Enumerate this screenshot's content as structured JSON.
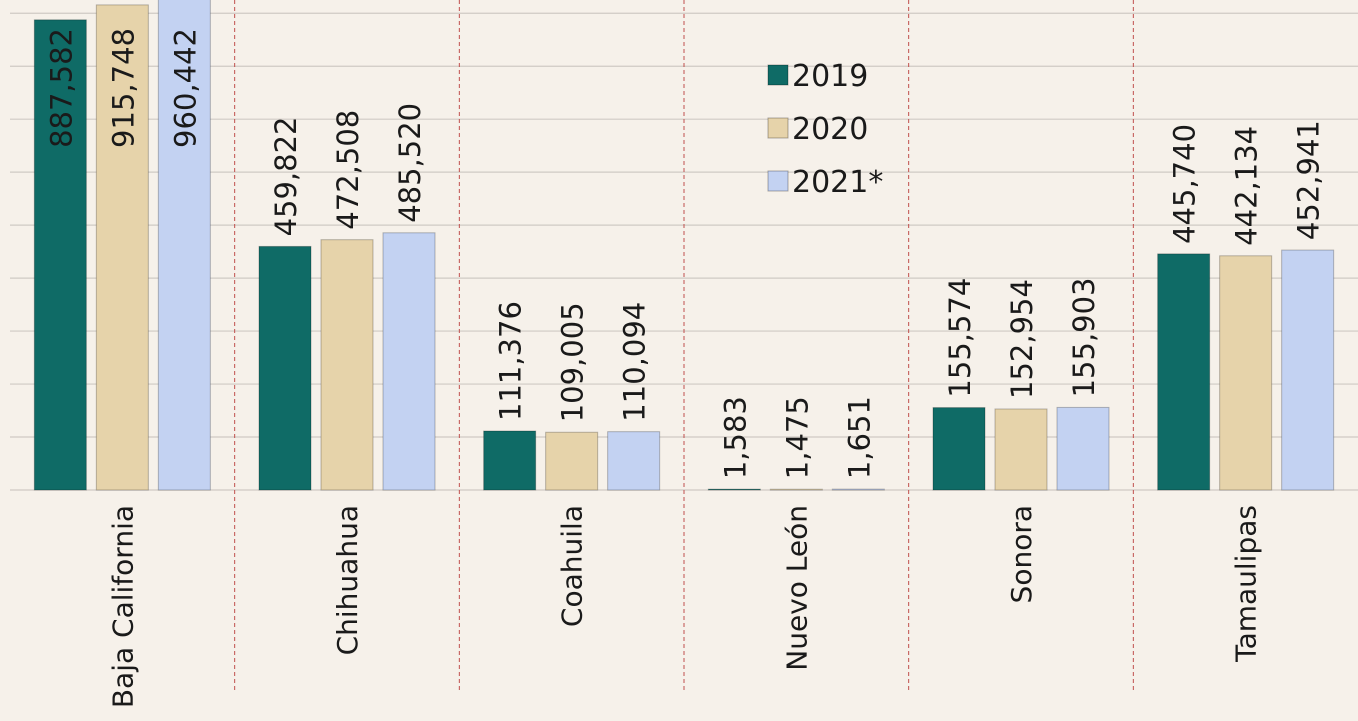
{
  "chart_data": {
    "type": "bar",
    "categories": [
      "Baja California",
      "Chihuahua",
      "Coahuila",
      "Nuevo León",
      "Sonora",
      "Tamaulipas"
    ],
    "series": [
      {
        "name": "2019",
        "color": "#0f6b66",
        "values": [
          887582,
          459822,
          111376,
          1583,
          155574,
          445740
        ],
        "value_labels": [
          "887,582",
          "459,822",
          "111,376",
          "1,583",
          "155,574",
          "445,740"
        ]
      },
      {
        "name": "2020",
        "color": "#e6d3aa",
        "values": [
          915748,
          472508,
          109005,
          1475,
          152954,
          442134
        ],
        "value_labels": [
          "915,748",
          "472,508",
          "109,005",
          "1,475",
          "152,954",
          "442,134"
        ]
      },
      {
        "name": "2021*",
        "color": "#c3d2f2",
        "values": [
          960442,
          485520,
          110094,
          1651,
          155903,
          452941
        ],
        "value_labels": [
          "960,442",
          "485,520",
          "110,094",
          "1,651",
          "155,903",
          "452,941"
        ]
      }
    ],
    "ylim": [
      0,
      925000
    ],
    "yticks": [
      0,
      100000,
      200000,
      300000,
      400000,
      500000,
      600000,
      700000,
      800000,
      900000
    ],
    "grid": true,
    "legend": "top-center"
  }
}
